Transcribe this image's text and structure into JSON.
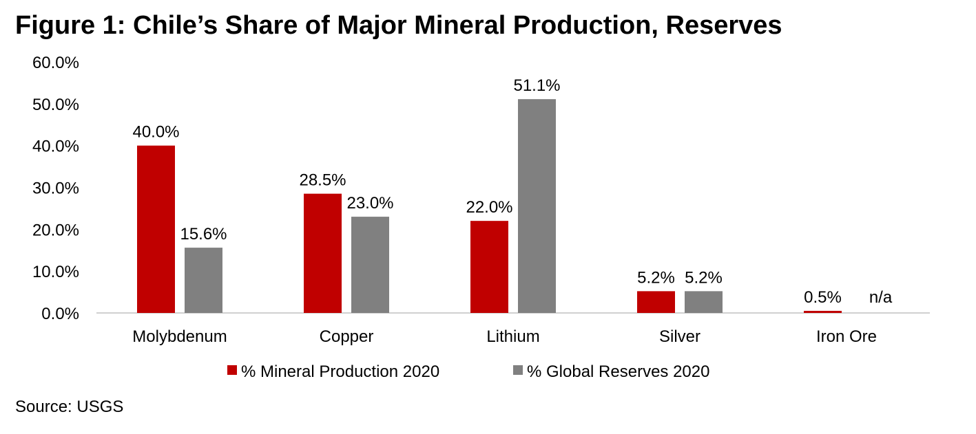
{
  "chart_data": {
    "type": "bar",
    "title": "Figure 1:  Chile’s Share of Major Mineral Production, Reserves",
    "categories": [
      "Molybdenum",
      "Copper",
      "Lithium",
      "Silver",
      "Iron Ore"
    ],
    "series": [
      {
        "name": "% Mineral Production 2020",
        "color": "#C00000",
        "values": [
          40.0,
          28.5,
          22.0,
          5.2,
          0.5
        ],
        "labels": [
          "40.0%",
          "28.5%",
          "22.0%",
          "5.2%",
          "0.5%"
        ]
      },
      {
        "name": "% Global Reserves 2020",
        "color": "#808080",
        "values": [
          15.6,
          23.0,
          51.1,
          5.2,
          null
        ],
        "labels": [
          "15.6%",
          "23.0%",
          "51.1%",
          "5.2%",
          "n/a"
        ]
      }
    ],
    "yticks": [
      "0.0%",
      "10.0%",
      "20.0%",
      "30.0%",
      "40.0%",
      "50.0%",
      "60.0%"
    ],
    "ylim": [
      0,
      60
    ],
    "xlabel": "",
    "ylabel": "",
    "grid": false,
    "legend": "bottom",
    "source": "Source: USGS"
  }
}
